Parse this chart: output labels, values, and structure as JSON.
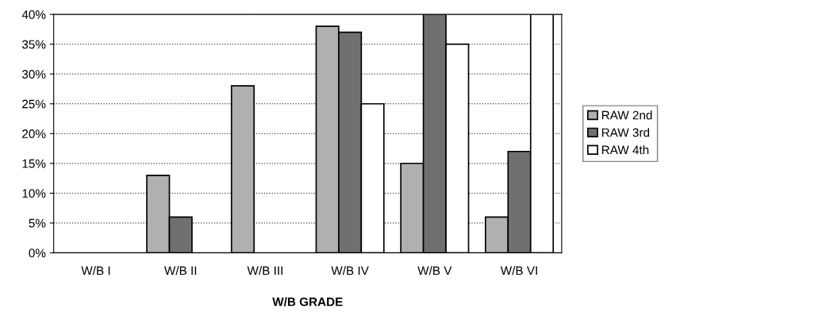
{
  "chart_data": {
    "type": "bar",
    "xlabel": "W/B GRADE",
    "categories": [
      "W/B I",
      "W/B II",
      "W/B III",
      "W/B IV",
      "W/B V",
      "W/B VI"
    ],
    "series": [
      {
        "name": "RAW 2nd",
        "color": "#b0b0b0",
        "values": [
          0,
          13,
          28,
          38,
          15,
          6
        ]
      },
      {
        "name": "RAW 3rd",
        "color": "#707070",
        "values": [
          0,
          6,
          0,
          37,
          40,
          17
        ]
      },
      {
        "name": "RAW 4th",
        "color": "#ffffff",
        "values": [
          0,
          0,
          0,
          25,
          35,
          40
        ]
      }
    ],
    "ylim": [
      0,
      40
    ],
    "yticks": [
      {
        "value": 0,
        "label": "0%"
      },
      {
        "value": 5,
        "label": "5%"
      },
      {
        "value": 10,
        "label": "10%"
      },
      {
        "value": 15,
        "label": "15%"
      },
      {
        "value": 20,
        "label": "20%"
      },
      {
        "value": 25,
        "label": "25%"
      },
      {
        "value": 30,
        "label": "30%"
      },
      {
        "value": 35,
        "label": "35%"
      },
      {
        "value": 40,
        "label": "40%"
      }
    ],
    "grid": "y",
    "legend": "right"
  }
}
